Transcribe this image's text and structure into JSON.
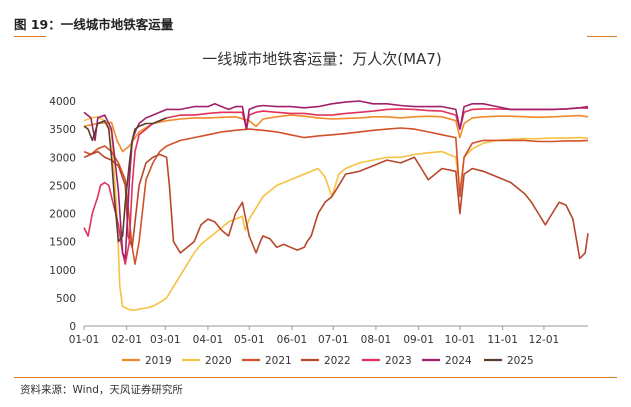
{
  "figure": {
    "caption": "图 19：一线城市地铁客运量",
    "source": "资料来源：Wind，天风证券研究所"
  },
  "chart_data": {
    "type": "line",
    "title": "一线城市地铁客运量：万人次(MA7)",
    "xlabel": "",
    "ylabel": "",
    "ylim": [
      0,
      4000
    ],
    "yticks": [
      0,
      500,
      1000,
      1500,
      2000,
      2500,
      3000,
      3500,
      4000
    ],
    "xlim": [
      0,
      366
    ],
    "xticks": [
      {
        "label": "01-01",
        "day": 0
      },
      {
        "label": "02-01",
        "day": 31
      },
      {
        "label": "03-01",
        "day": 59
      },
      {
        "label": "04-01",
        "day": 90
      },
      {
        "label": "05-01",
        "day": 120
      },
      {
        "label": "06-01",
        "day": 151
      },
      {
        "label": "07-01",
        "day": 181
      },
      {
        "label": "08-01",
        "day": 212
      },
      {
        "label": "09-01",
        "day": 243
      },
      {
        "label": "10-01",
        "day": 273
      },
      {
        "label": "11-01",
        "day": 304
      },
      {
        "label": "12-01",
        "day": 334
      }
    ],
    "grid": false,
    "legend_position": "bottom",
    "series": [
      {
        "name": "2019",
        "color": "#f08a2c",
        "x": [
          0,
          10,
          20,
          24,
          28,
          33,
          40,
          50,
          60,
          70,
          80,
          90,
          100,
          110,
          120,
          125,
          130,
          140,
          150,
          160,
          170,
          180,
          190,
          200,
          210,
          220,
          230,
          240,
          250,
          260,
          270,
          273,
          276,
          282,
          290,
          300,
          310,
          320,
          330,
          340,
          350,
          360,
          366
        ],
        "y": [
          3550,
          3600,
          3620,
          3300,
          3100,
          3200,
          3450,
          3600,
          3650,
          3680,
          3700,
          3700,
          3710,
          3720,
          3650,
          3550,
          3680,
          3720,
          3750,
          3730,
          3700,
          3680,
          3690,
          3700,
          3720,
          3720,
          3700,
          3720,
          3730,
          3720,
          3650,
          3350,
          3600,
          3700,
          3720,
          3730,
          3730,
          3720,
          3710,
          3720,
          3730,
          3740,
          3720
        ]
      },
      {
        "name": "2020",
        "color": "#f5c242",
        "x": [
          0,
          5,
          10,
          15,
          20,
          24,
          26,
          28,
          32,
          36,
          40,
          45,
          50,
          55,
          60,
          65,
          70,
          75,
          80,
          85,
          90,
          95,
          100,
          105,
          110,
          115,
          117,
          120,
          125,
          130,
          140,
          150,
          160,
          170,
          175,
          180,
          185,
          190,
          200,
          210,
          220,
          230,
          240,
          250,
          260,
          270,
          273,
          276,
          282,
          290,
          300,
          310,
          320,
          330,
          340,
          350,
          360,
          366
        ],
        "y": [
          3650,
          3700,
          3720,
          3650,
          3450,
          2000,
          700,
          350,
          300,
          280,
          300,
          320,
          350,
          420,
          500,
          700,
          900,
          1100,
          1300,
          1450,
          1550,
          1650,
          1750,
          1850,
          1900,
          1950,
          1700,
          1900,
          2100,
          2300,
          2500,
          2600,
          2700,
          2800,
          2650,
          2300,
          2700,
          2800,
          2900,
          2950,
          3000,
          3000,
          3050,
          3080,
          3100,
          3000,
          2400,
          3000,
          3150,
          3250,
          3300,
          3320,
          3330,
          3330,
          3340,
          3340,
          3350,
          3340
        ]
      },
      {
        "name": "2021",
        "color": "#d4502a",
        "x": [
          0,
          5,
          10,
          15,
          20,
          25,
          30,
          35,
          37,
          40,
          45,
          50,
          55,
          60,
          70,
          80,
          90,
          100,
          110,
          120,
          130,
          140,
          150,
          160,
          170,
          180,
          190,
          200,
          210,
          220,
          230,
          240,
          250,
          260,
          270,
          273,
          276,
          282,
          290,
          300,
          310,
          320,
          330,
          340,
          350,
          360,
          366
        ],
        "y": [
          3100,
          3050,
          3150,
          3200,
          3100,
          2900,
          2600,
          1400,
          1100,
          1500,
          2600,
          2900,
          3100,
          3200,
          3300,
          3350,
          3400,
          3450,
          3480,
          3500,
          3480,
          3450,
          3400,
          3350,
          3380,
          3400,
          3420,
          3450,
          3480,
          3500,
          3520,
          3500,
          3450,
          3400,
          3350,
          2300,
          3000,
          3250,
          3300,
          3300,
          3300,
          3300,
          3280,
          3280,
          3290,
          3290,
          3300
        ]
      },
      {
        "name": "2022",
        "color": "#b6472c",
        "x": [
          0,
          5,
          10,
          15,
          20,
          25,
          30,
          32,
          35,
          40,
          45,
          50,
          55,
          60,
          62,
          65,
          70,
          75,
          80,
          85,
          90,
          95,
          100,
          105,
          110,
          115,
          120,
          125,
          128,
          130,
          135,
          140,
          145,
          150,
          155,
          160,
          162,
          165,
          170,
          175,
          180,
          185,
          190,
          200,
          210,
          220,
          230,
          240,
          245,
          250,
          260,
          270,
          273,
          276,
          282,
          290,
          300,
          310,
          320,
          325,
          330,
          335,
          340,
          345,
          350,
          355,
          360,
          364,
          366
        ],
        "y": [
          3000,
          3050,
          3100,
          3000,
          2950,
          2850,
          2500,
          1600,
          1400,
          2500,
          2900,
          3000,
          3050,
          3000,
          2500,
          1500,
          1300,
          1400,
          1500,
          1800,
          1900,
          1850,
          1700,
          1600,
          2000,
          2200,
          1600,
          1300,
          1500,
          1600,
          1550,
          1400,
          1450,
          1400,
          1350,
          1400,
          1500,
          1600,
          2000,
          2200,
          2300,
          2500,
          2700,
          2750,
          2850,
          2950,
          2900,
          3000,
          2800,
          2600,
          2800,
          2750,
          2000,
          2700,
          2800,
          2750,
          2650,
          2550,
          2350,
          2200,
          2000,
          1800,
          2000,
          2200,
          2150,
          1900,
          1200,
          1300,
          1650
        ]
      },
      {
        "name": "2023",
        "color": "#e0325a",
        "x": [
          0,
          3,
          6,
          10,
          12,
          15,
          18,
          20,
          25,
          28,
          30,
          33,
          35,
          37,
          40,
          45,
          50,
          55,
          60,
          70,
          80,
          90,
          100,
          110,
          115,
          118,
          120,
          125,
          130,
          140,
          150,
          160,
          170,
          180,
          190,
          200,
          210,
          220,
          230,
          240,
          250,
          260,
          270,
          273,
          276,
          282,
          290,
          300,
          310,
          320,
          330,
          340,
          350,
          360,
          366
        ],
        "y": [
          1750,
          1600,
          2000,
          2300,
          2500,
          2550,
          2500,
          2300,
          1800,
          1300,
          1100,
          1500,
          2500,
          3100,
          3400,
          3500,
          3600,
          3650,
          3700,
          3750,
          3750,
          3780,
          3800,
          3800,
          3800,
          3500,
          3750,
          3800,
          3820,
          3800,
          3780,
          3780,
          3750,
          3750,
          3780,
          3800,
          3820,
          3850,
          3860,
          3850,
          3830,
          3820,
          3750,
          3500,
          3800,
          3850,
          3860,
          3860,
          3850,
          3850,
          3850,
          3850,
          3860,
          3880,
          3870
        ]
      },
      {
        "name": "2024",
        "color": "#a0206a",
        "x": [
          0,
          5,
          8,
          10,
          15,
          20,
          25,
          28,
          30,
          33,
          35,
          38,
          40,
          45,
          50,
          55,
          60,
          70,
          80,
          90,
          95,
          100,
          105,
          110,
          115,
          118,
          120,
          125,
          130,
          140,
          150,
          160,
          170,
          180,
          190,
          200,
          210,
          220,
          230,
          240,
          250,
          260,
          270,
          273,
          276,
          282,
          290,
          300,
          310,
          320,
          330,
          340,
          350,
          360,
          366
        ],
        "y": [
          3800,
          3700,
          3300,
          3700,
          3750,
          3500,
          2400,
          1300,
          1200,
          2600,
          3300,
          3500,
          3600,
          3700,
          3750,
          3800,
          3850,
          3850,
          3900,
          3900,
          3950,
          3900,
          3850,
          3900,
          3900,
          3500,
          3850,
          3900,
          3920,
          3900,
          3900,
          3880,
          3900,
          3950,
          3980,
          4000,
          3950,
          3950,
          3920,
          3900,
          3900,
          3900,
          3850,
          3500,
          3900,
          3950,
          3950,
          3900,
          3850,
          3850,
          3850,
          3850,
          3860,
          3880,
          3900
        ]
      },
      {
        "name": "2025",
        "color": "#5a3e2e",
        "x": [
          0,
          3,
          6,
          10,
          15,
          18,
          20,
          22,
          25,
          28,
          30,
          33,
          35,
          37,
          40,
          45,
          50,
          55,
          60
        ],
        "y": [
          3550,
          3500,
          3300,
          3600,
          3650,
          3500,
          3000,
          2300,
          1500,
          1600,
          2200,
          2900,
          3300,
          3500,
          3550,
          3600,
          3600,
          3650,
          3700
        ]
      }
    ]
  }
}
